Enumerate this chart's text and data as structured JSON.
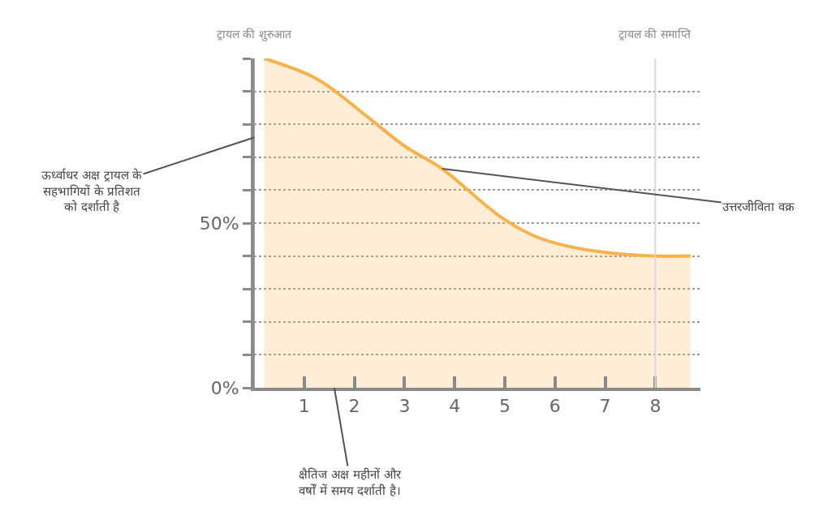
{
  "chart_data": {
    "type": "area",
    "x": [
      0.2,
      1.25,
      2.2,
      3.0,
      3.75,
      4.65,
      5.0,
      5.6,
      6.25,
      7.05,
      8.0,
      8.7
    ],
    "series": [
      {
        "color": "#f9b14a",
        "values": [
          100,
          93.8,
          83,
          73.4,
          66.5,
          55,
          51,
          46,
          43,
          41,
          40,
          40
        ]
      }
    ],
    "xlim": [
      0,
      8.9
    ],
    "xticks": [
      1,
      2,
      3,
      4,
      5,
      6,
      7,
      8
    ],
    "ylim": [
      0,
      100
    ],
    "yticks": [
      {
        "value": 0,
        "label": "0%"
      },
      {
        "value": 10,
        "label": null
      },
      {
        "value": 20,
        "label": null
      },
      {
        "value": 30,
        "label": null
      },
      {
        "value": 40,
        "label": null
      },
      {
        "value": 50,
        "label": "50%"
      },
      {
        "value": 60,
        "label": null
      },
      {
        "value": 70,
        "label": null
      },
      {
        "value": 80,
        "label": null
      },
      {
        "value": 90,
        "label": null
      },
      {
        "value": 100,
        "label": null
      }
    ],
    "grid": "y",
    "marker": "none",
    "line_style": "solid",
    "ref_lines": [
      {
        "axis": "x",
        "value": 0,
        "label": "ट्रायल की शुरुआत",
        "color": "#9e9e9e"
      },
      {
        "axis": "x",
        "value": 8,
        "label": "ट्रायल की समाप्ति",
        "color": "#d9d9d9"
      }
    ],
    "annotations": [
      {
        "text": "ऊर्ध्वाधर अक्ष ट्रायल के\nसहभागियों के प्रतिशत\nको दर्शाती है",
        "x": 0,
        "y": 76
      },
      {
        "text": "उत्तरजीविता वक्र",
        "x": 3.75,
        "y": 66.5
      },
      {
        "text": "क्षैतिज अक्ष महीनों और\nवर्षों में समय दर्शाती है।",
        "x": 1.6,
        "y": 0
      }
    ]
  }
}
